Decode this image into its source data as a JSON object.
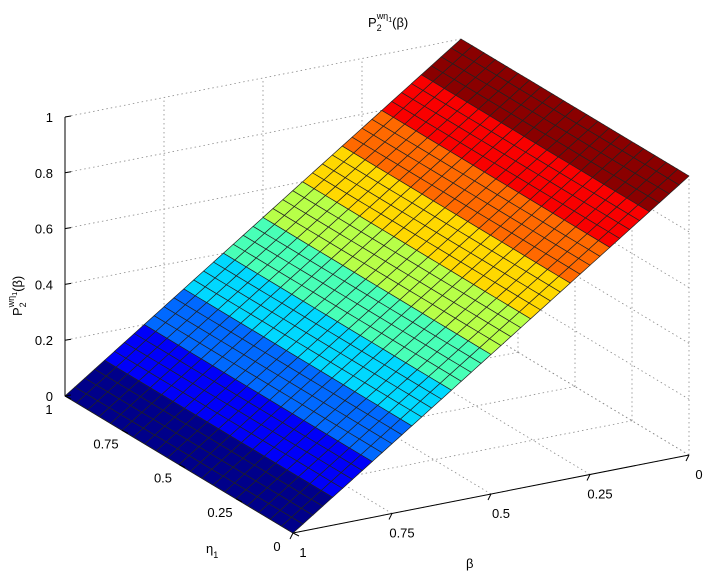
{
  "chart_data": {
    "type": "surface",
    "title": {
      "base": "P",
      "sup": "wη",
      "supsub": "1",
      "sub": "2",
      "arg": "(β)"
    },
    "zlabel": {
      "base": "P",
      "sup": "wη",
      "supsub": "1",
      "sub": "2",
      "arg": "(β)"
    },
    "xlabel": "β",
    "ylabel": {
      "base": "η",
      "sub": "1"
    },
    "x_ticks": [
      "0",
      "0.25",
      "0.5",
      "0.75",
      "1"
    ],
    "y_ticks": [
      "0",
      "0.25",
      "0.5",
      "0.75",
      "1"
    ],
    "z_ticks": [
      "0",
      "0.2",
      "0.4",
      "0.6",
      "0.8",
      "1"
    ],
    "xlim": [
      0,
      1
    ],
    "ylim": [
      0,
      1
    ],
    "zlim": [
      0,
      1
    ],
    "grid": true,
    "colormap": "jet",
    "mesh_grid": {
      "beta_samples": 41,
      "eta1_samples": 21
    },
    "surface_function": "P = 1 - beta (constant in eta1)",
    "key_values": [
      {
        "beta": 0,
        "eta1": 0,
        "P": 1
      },
      {
        "beta": 0,
        "eta1": 1,
        "P": 1
      },
      {
        "beta": 1,
        "eta1": 0,
        "P": 0
      },
      {
        "beta": 1,
        "eta1": 1,
        "P": 0
      }
    ]
  }
}
